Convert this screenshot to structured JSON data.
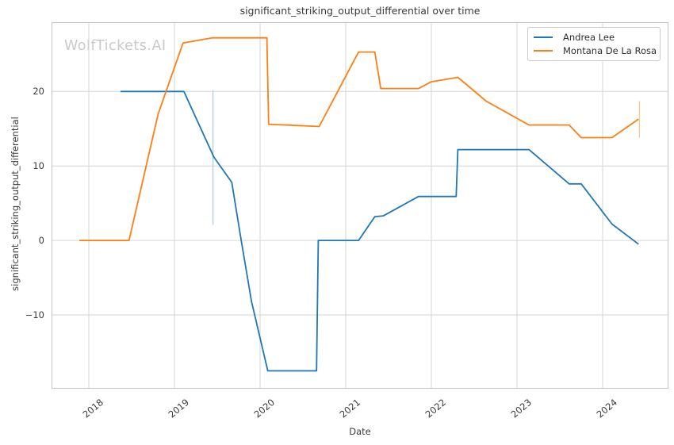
{
  "watermark": "WolfTickets.AI",
  "styles": {
    "grid_color": "#d6d6d6",
    "spine_color": "#c4c4c4",
    "text_color": "#3a3a3a",
    "watermark_color": "#c9c9c9",
    "background": "#ffffff"
  },
  "chart_data": {
    "type": "line",
    "title": "significant_striking_output_differential over time",
    "xlabel": "Date",
    "ylabel": "significant_striking_output_differential",
    "grid": true,
    "legend_position": "upper right",
    "xlim": [
      2017.565,
      2024.769
    ],
    "ylim": [
      -19.9,
      29.3
    ],
    "x_ticks": [
      2018,
      2019,
      2020,
      2021,
      2022,
      2023,
      2024
    ],
    "x_tick_labels": [
      "2018",
      "2019",
      "2020",
      "2021",
      "2022",
      "2023",
      "2024"
    ],
    "x_tick_rotation": 40,
    "y_ticks": [
      -10,
      0,
      10,
      20
    ],
    "y_tick_labels": [
      "−10",
      "0",
      "10",
      "20"
    ],
    "series": [
      {
        "name": "Andrea Lee",
        "color": "#1f77b4",
        "points": [
          [
            2018.37,
            20
          ],
          [
            2019.11,
            20
          ],
          [
            2019.46,
            11.2
          ],
          [
            2019.67,
            7.8
          ],
          [
            2019.78,
            0
          ],
          [
            2019.9,
            -8.2
          ],
          [
            2020.09,
            -17.5
          ],
          [
            2020.66,
            -17.5
          ],
          [
            2020.68,
            0
          ],
          [
            2021.15,
            0
          ],
          [
            2021.34,
            3.2
          ],
          [
            2021.44,
            3.3
          ],
          [
            2021.85,
            5.9
          ],
          [
            2022.29,
            5.9
          ],
          [
            2022.31,
            12.2
          ],
          [
            2023.14,
            12.2
          ],
          [
            2023.61,
            7.6
          ],
          [
            2023.75,
            7.6
          ],
          [
            2024.11,
            2.2
          ],
          [
            2024.42,
            -0.5
          ]
        ]
      },
      {
        "name": "Montana De La Rosa",
        "color": "#ff7f0e",
        "points": [
          [
            2017.89,
            0
          ],
          [
            2018.47,
            0
          ],
          [
            2018.81,
            17.0
          ],
          [
            2019.1,
            26.5
          ],
          [
            2019.44,
            27.2
          ],
          [
            2020.08,
            27.2
          ],
          [
            2020.1,
            15.6
          ],
          [
            2020.69,
            15.3
          ],
          [
            2021.15,
            25.3
          ],
          [
            2021.34,
            25.3
          ],
          [
            2021.41,
            20.4
          ],
          [
            2021.85,
            20.4
          ],
          [
            2022.0,
            21.3
          ],
          [
            2022.31,
            21.9
          ],
          [
            2022.64,
            18.7
          ],
          [
            2023.14,
            15.5
          ],
          [
            2023.61,
            15.5
          ],
          [
            2023.75,
            13.8
          ],
          [
            2024.11,
            13.8
          ],
          [
            2024.42,
            16.3
          ]
        ]
      }
    ],
    "error_bars": [
      {
        "series": "Andrea Lee",
        "x": 2019.45,
        "lo": 2.1,
        "hi": 20.2,
        "color": "#a8cfe8"
      },
      {
        "series": "Montana De La Rosa",
        "x": 2024.43,
        "lo": 13.8,
        "hi": 18.7,
        "color": "#ffc690"
      }
    ]
  }
}
